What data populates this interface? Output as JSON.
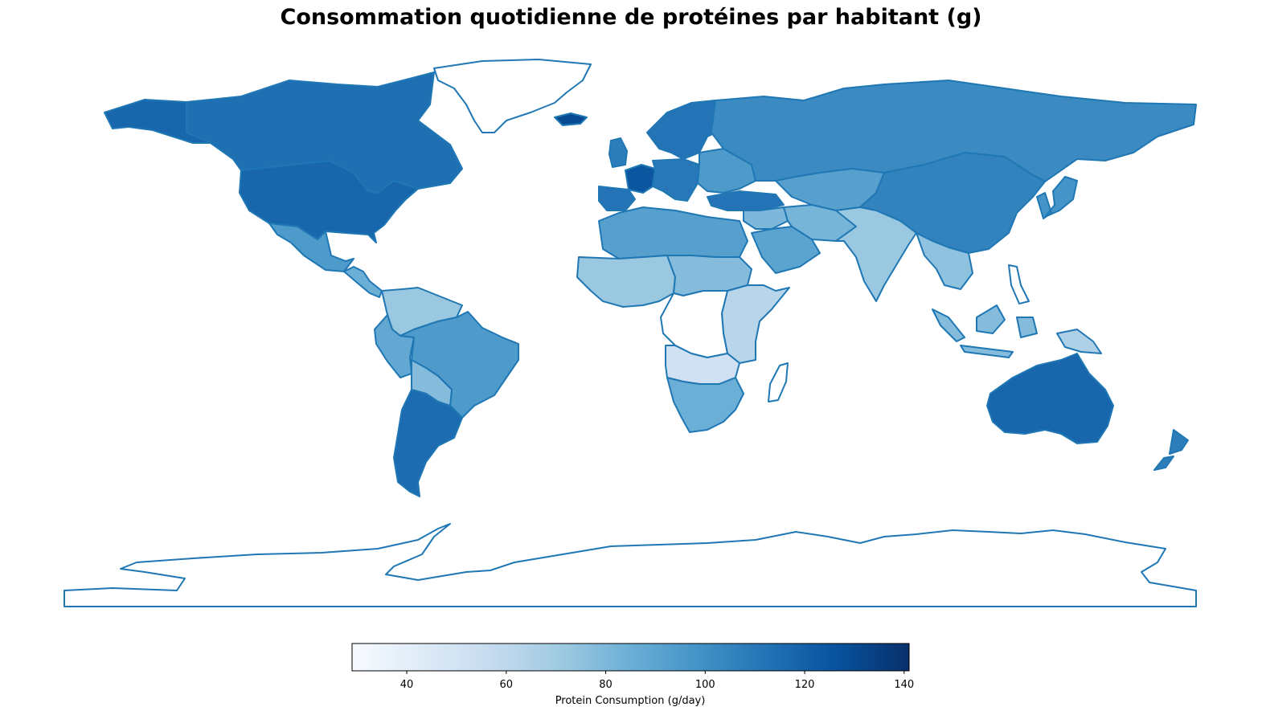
{
  "title": "Consommation quotidienne de protéines par habitant (g)",
  "colorbar": {
    "label": "Protein Consumption (g/day)",
    "min": 29,
    "max": 141,
    "ticks": [
      40,
      60,
      80,
      100,
      120,
      140
    ],
    "colormap": "Blues",
    "gradient": [
      "#f7fbff",
      "#deebf7",
      "#c6dbef",
      "#9ecae1",
      "#6baed6",
      "#4292c6",
      "#2171b5",
      "#08519c",
      "#08306b"
    ]
  },
  "colors": {
    "border": "#1f77b4",
    "no_data_fill": "#ffffff"
  },
  "chart_data": {
    "type": "choropleth",
    "projection": "plate-carree",
    "metric": "protein_g_per_day",
    "regions": [
      {
        "id": "canada",
        "value": 114
      },
      {
        "id": "usa",
        "value": 118
      },
      {
        "id": "alaska",
        "value": 118
      },
      {
        "id": "mexico",
        "value": 95
      },
      {
        "id": "central-america",
        "value": 85
      },
      {
        "id": "colombia-venezuela",
        "value": 72
      },
      {
        "id": "brazil",
        "value": 95
      },
      {
        "id": "peru-ecuador",
        "value": 88
      },
      {
        "id": "bolivia-paraguay",
        "value": 78
      },
      {
        "id": "argentina",
        "value": 115
      },
      {
        "id": "greenland",
        "value": null
      },
      {
        "id": "iceland",
        "value": 130
      },
      {
        "id": "scandinavia",
        "value": 112
      },
      {
        "id": "uk",
        "value": 108
      },
      {
        "id": "france",
        "value": 125
      },
      {
        "id": "iberia",
        "value": 112
      },
      {
        "id": "western-europe",
        "value": 110
      },
      {
        "id": "eastern-europe",
        "value": 95
      },
      {
        "id": "turkey",
        "value": 112
      },
      {
        "id": "russia",
        "value": 102
      },
      {
        "id": "central-asia",
        "value": 92
      },
      {
        "id": "middle-east",
        "value": 80
      },
      {
        "id": "arabia",
        "value": 90
      },
      {
        "id": "iran-afghanistan",
        "value": 82
      },
      {
        "id": "south-asia",
        "value": 72
      },
      {
        "id": "china-mongolia",
        "value": 106
      },
      {
        "id": "korea-japan",
        "value": 98
      },
      {
        "id": "southeast-asia",
        "value": 75
      },
      {
        "id": "indonesia",
        "value": 78
      },
      {
        "id": "png",
        "value": 65
      },
      {
        "id": "australia",
        "value": 118
      },
      {
        "id": "new-zealand",
        "value": 108
      },
      {
        "id": "north-africa",
        "value": 92
      },
      {
        "id": "west-africa",
        "value": 72
      },
      {
        "id": "sahel",
        "value": 78
      },
      {
        "id": "east-africa",
        "value": 62
      },
      {
        "id": "central-africa",
        "value": null
      },
      {
        "id": "angola-zambia",
        "value": 52
      },
      {
        "id": "southern-africa",
        "value": 85
      },
      {
        "id": "madagascar",
        "value": null
      },
      {
        "id": "antarctica",
        "value": null
      }
    ]
  }
}
